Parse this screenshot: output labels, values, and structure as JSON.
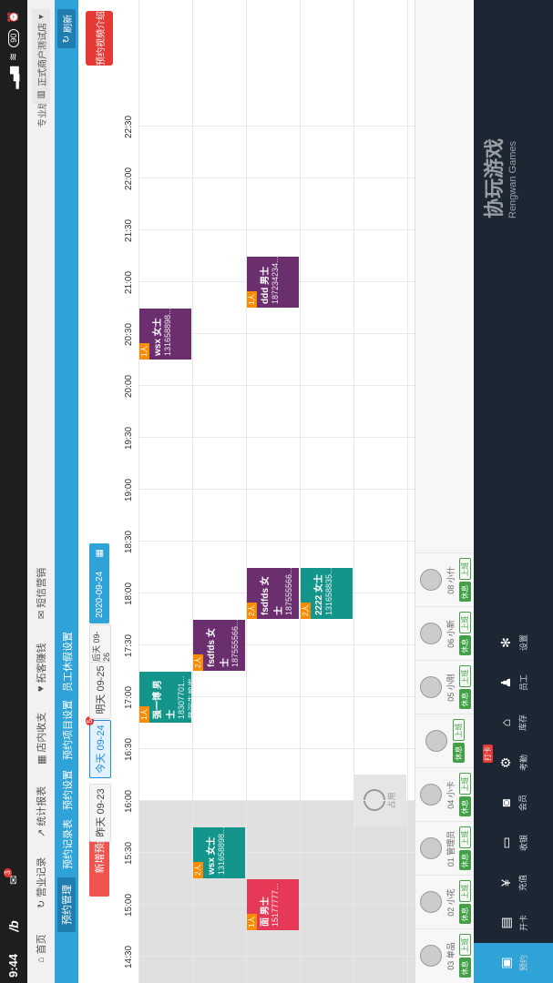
{
  "status": {
    "time": "9:44",
    "battery": "90"
  },
  "header": {
    "mail_badge": "3"
  },
  "nav": {
    "items": [
      {
        "label": "首页",
        "icon": "home-icon"
      },
      {
        "label": "营业记录",
        "icon": "refresh-icon"
      },
      {
        "label": "统计报表",
        "icon": "chart-icon"
      },
      {
        "label": "店内收支",
        "icon": "ledger-icon"
      },
      {
        "label": "拓客赚钱",
        "icon": "heart-icon"
      },
      {
        "label": "短信营销",
        "icon": "message-icon"
      }
    ],
    "pro_label": "专业版",
    "store": "正式商户测试店"
  },
  "subtabs": {
    "items": [
      "预约管理",
      "预约记录表",
      "预约设置",
      "预约项目设置",
      "员工休假设置"
    ],
    "refresh": "刷新"
  },
  "toolbar": {
    "new_booking": "新增预约",
    "days": [
      "昨天 09-23",
      "今天 09-24",
      "明天 09-25",
      "后天 09-26"
    ],
    "today_badge": "5",
    "date": "2020-09-24",
    "promo": "预约视频介绍"
  },
  "sidebar": {
    "items": [
      {
        "label": "预约",
        "icon": "calendar-icon",
        "badge": "3"
      },
      {
        "label": "开卡",
        "icon": "card-icon"
      },
      {
        "label": "充值",
        "icon": "yen-icon"
      },
      {
        "label": "收银",
        "icon": "cashier-icon"
      },
      {
        "label": "会员",
        "icon": "member-icon"
      },
      {
        "label": "考勤",
        "icon": "gear-icon",
        "punch": "打卡"
      },
      {
        "label": "库存",
        "icon": "warehouse-icon"
      },
      {
        "label": "员工",
        "icon": "staff-icon"
      },
      {
        "label": "设置",
        "icon": "settings-icon"
      }
    ]
  },
  "staff": [
    {
      "name": "03 单品"
    },
    {
      "name": "02 小花"
    },
    {
      "name": "01 管理员"
    },
    {
      "name": "04 小卡"
    },
    {
      "name": ""
    },
    {
      "name": "05 小刚"
    },
    {
      "name": "06 小新"
    },
    {
      "name": "08 小什"
    }
  ],
  "staff_tags": {
    "rest": "休息",
    "work": "上班"
  },
  "time_labels": [
    "14:30",
    "15:00",
    "15:30",
    "16:00",
    "16:30",
    "17:00",
    "17:30",
    "18:00",
    "18:30",
    "19:00",
    "19:30",
    "20:00",
    "20:30",
    "21:00",
    "21:30",
    "22:00",
    "22:30"
  ],
  "appointments": [
    {
      "row": 0,
      "start": "20:30",
      "end": "21:00",
      "count": "1人",
      "name": "wsx 女士",
      "phone": "131658898...",
      "color": "#6b2f6f"
    },
    {
      "row": 0,
      "start": "17:00",
      "end": "17:30",
      "count": "1人",
      "name": "强一博 男士",
      "phone": "18307701...",
      "note": "昔沉先剪发",
      "color": "#14958b"
    },
    {
      "row": 1,
      "start": "17:30",
      "end": "18:00",
      "count": "2人",
      "name": "fsdfds 女士",
      "phone": "187555566...",
      "color": "#6b2f6f"
    },
    {
      "row": 1,
      "start": "15:30",
      "end": "16:00",
      "count": "2人",
      "name": "wsx 女士",
      "phone": "131658898...",
      "color": "#14958b"
    },
    {
      "row": 2,
      "start": "21:00",
      "end": "21:30",
      "count": "1人",
      "name": "ddd 男士",
      "phone": "187234234...",
      "color": "#6b2f6f"
    },
    {
      "row": 2,
      "start": "18:00",
      "end": "18:30",
      "count": "2人",
      "name": "fsdfds 女士",
      "phone": "187555566...",
      "color": "#6b2f6f"
    },
    {
      "row": 2,
      "start": "15:00",
      "end": "15:30",
      "count": "1人",
      "name": "面 男士",
      "phone": "15177777...",
      "color": "#e53957"
    },
    {
      "row": 3,
      "start": "18:00",
      "end": "18:30",
      "count": "2人",
      "name": "2222 女士",
      "phone": "131658835...",
      "color": "#14958b"
    }
  ],
  "occupied": {
    "row": 4,
    "time": "16:00",
    "label": "占用"
  },
  "watermark": {
    "cn": "协玩游戏",
    "en": "Rengwan Games"
  }
}
